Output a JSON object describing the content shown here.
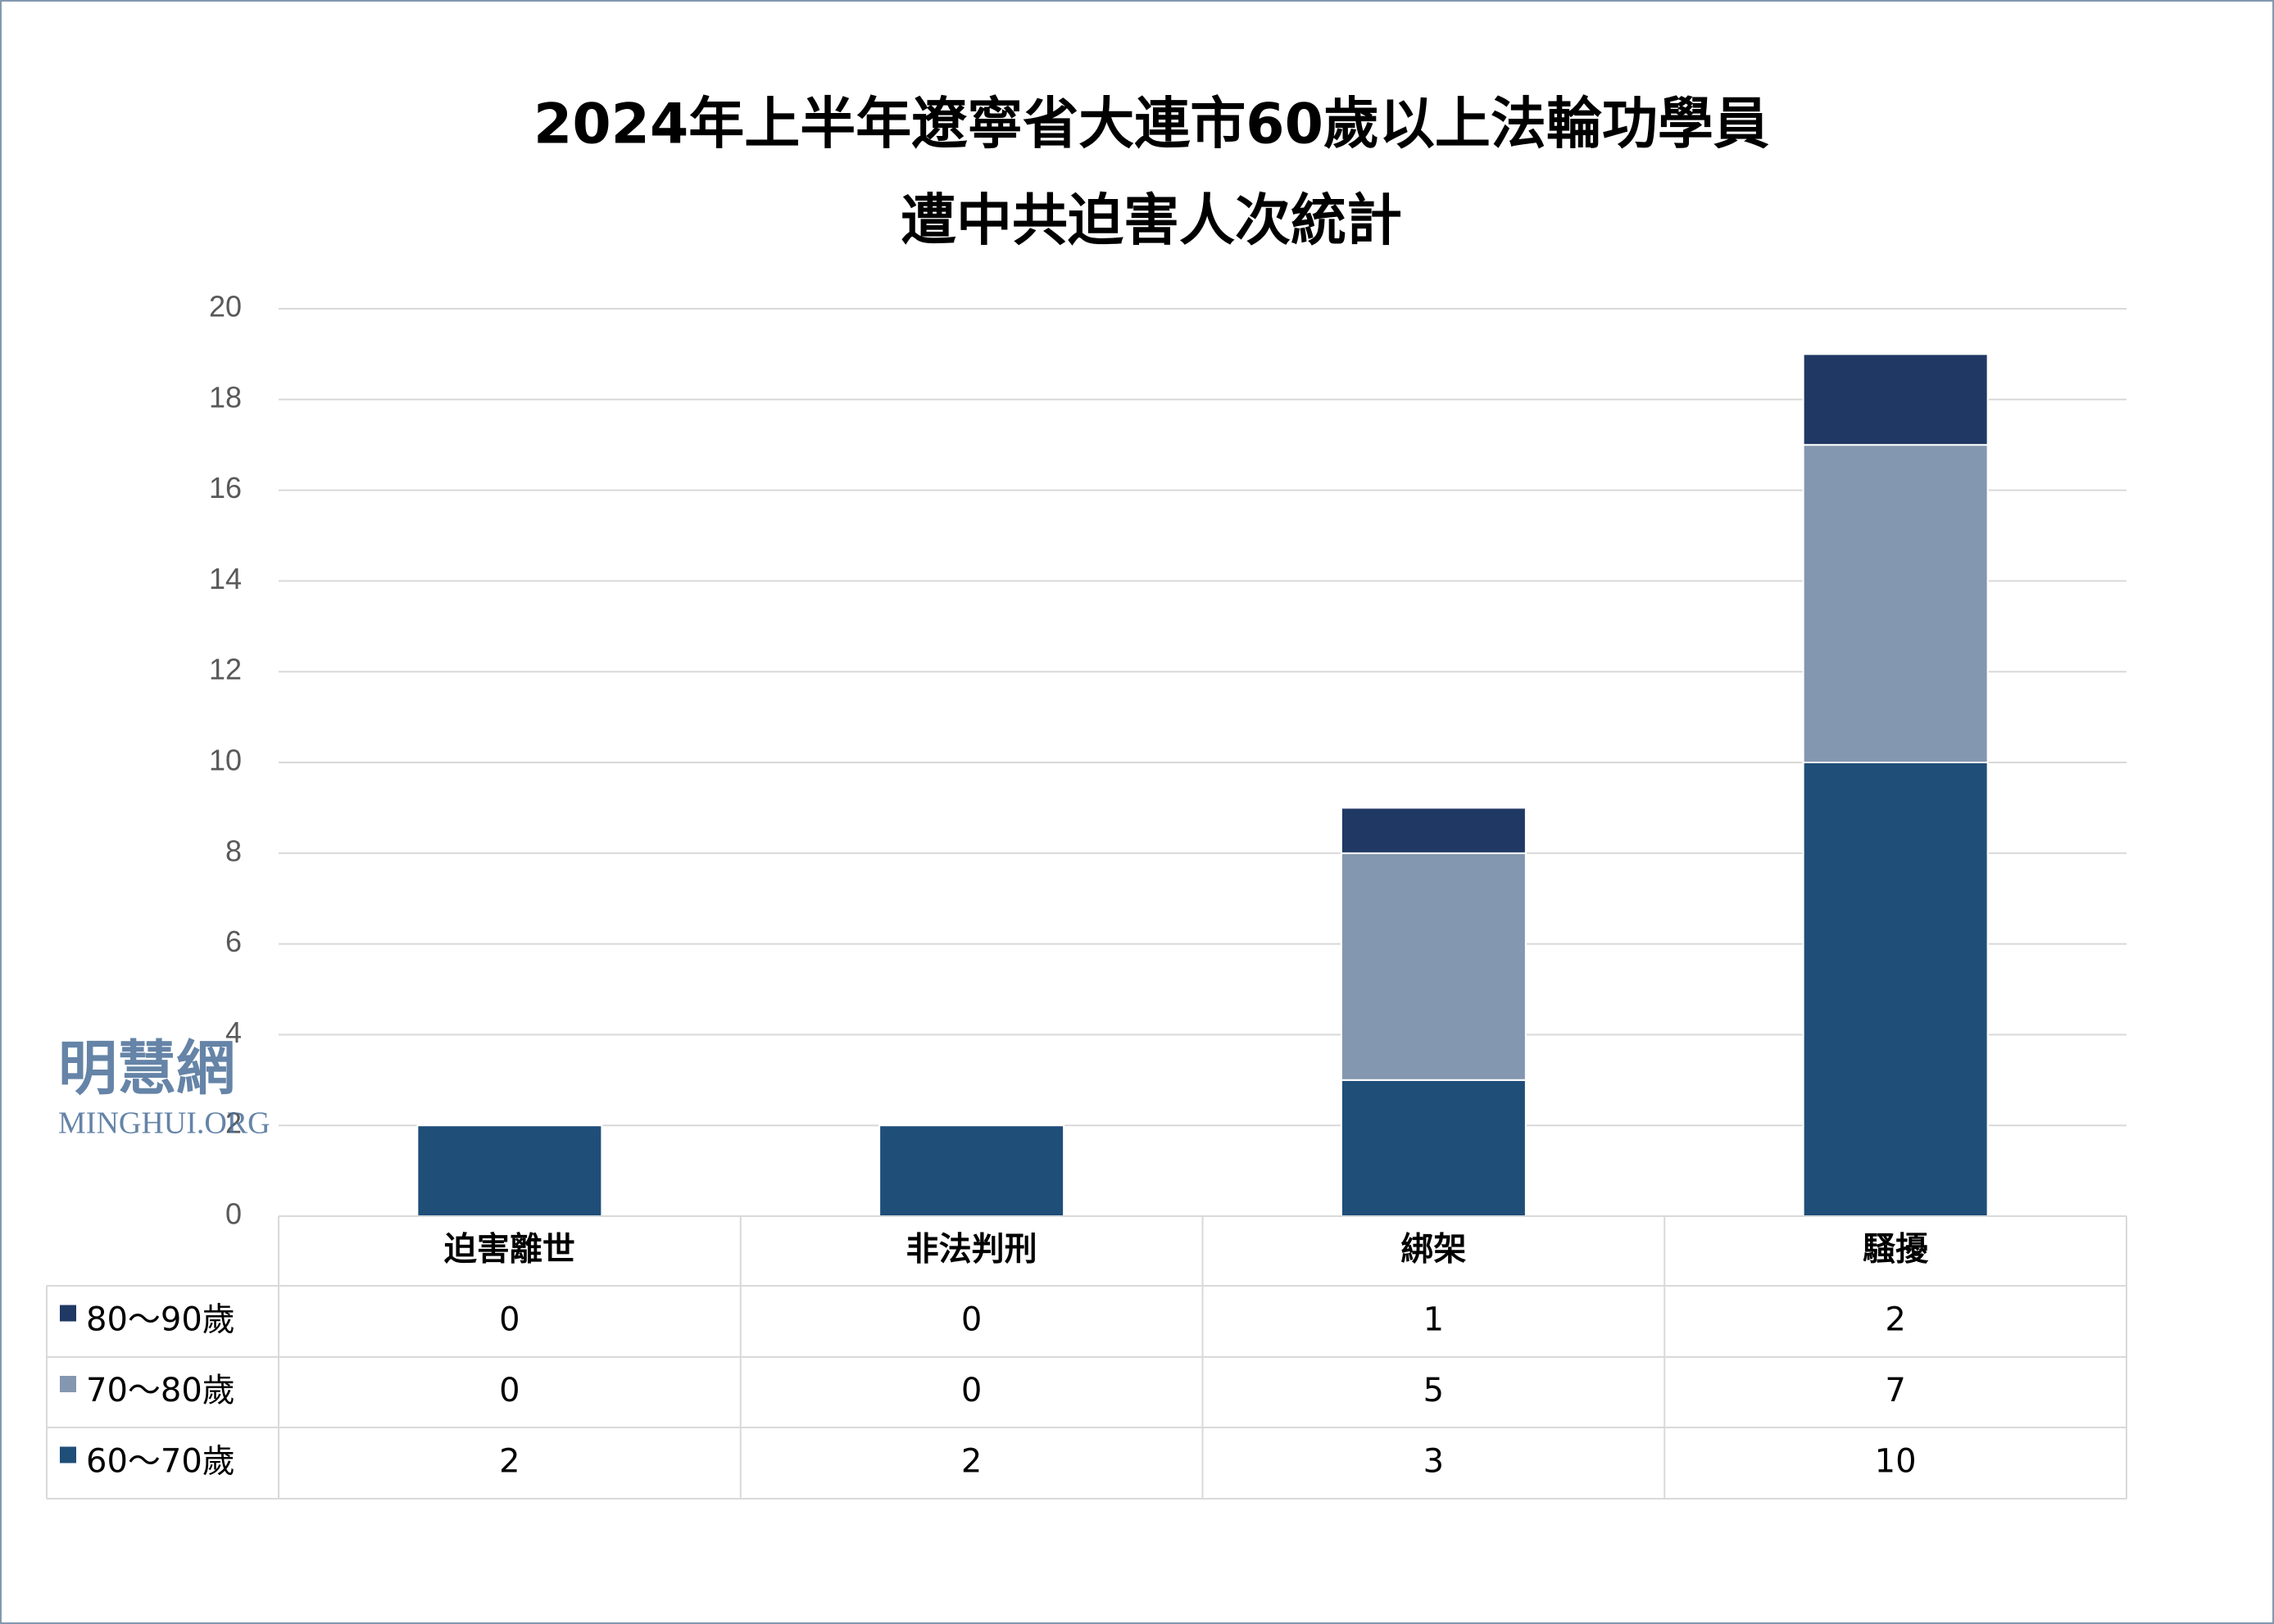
{
  "chart_data": {
    "type": "stacked_bar",
    "title": [
      "2024年上半年遼寧省大連市60歲以上法輪功學員",
      "遭中共迫害人次統計"
    ],
    "categories": [
      "迫害離世",
      "非法判刑",
      "綁架",
      "騷擾"
    ],
    "series": [
      {
        "name": "60～70歲",
        "color": "#1f4e79",
        "values": [
          2,
          2,
          3,
          10
        ]
      },
      {
        "name": "70～80歲",
        "color": "#8497b0",
        "values": [
          0,
          0,
          5,
          7
        ]
      },
      {
        "name": "80～90歲",
        "color": "#203864",
        "values": [
          0,
          0,
          1,
          2
        ]
      }
    ],
    "ylim": [
      0,
      20
    ],
    "yticks": [
      0,
      2,
      4,
      6,
      8,
      10,
      12,
      14,
      16,
      18,
      20
    ],
    "grid": true,
    "watermark": {
      "name": "明慧網",
      "site": "MINGHUI.ORG"
    }
  }
}
